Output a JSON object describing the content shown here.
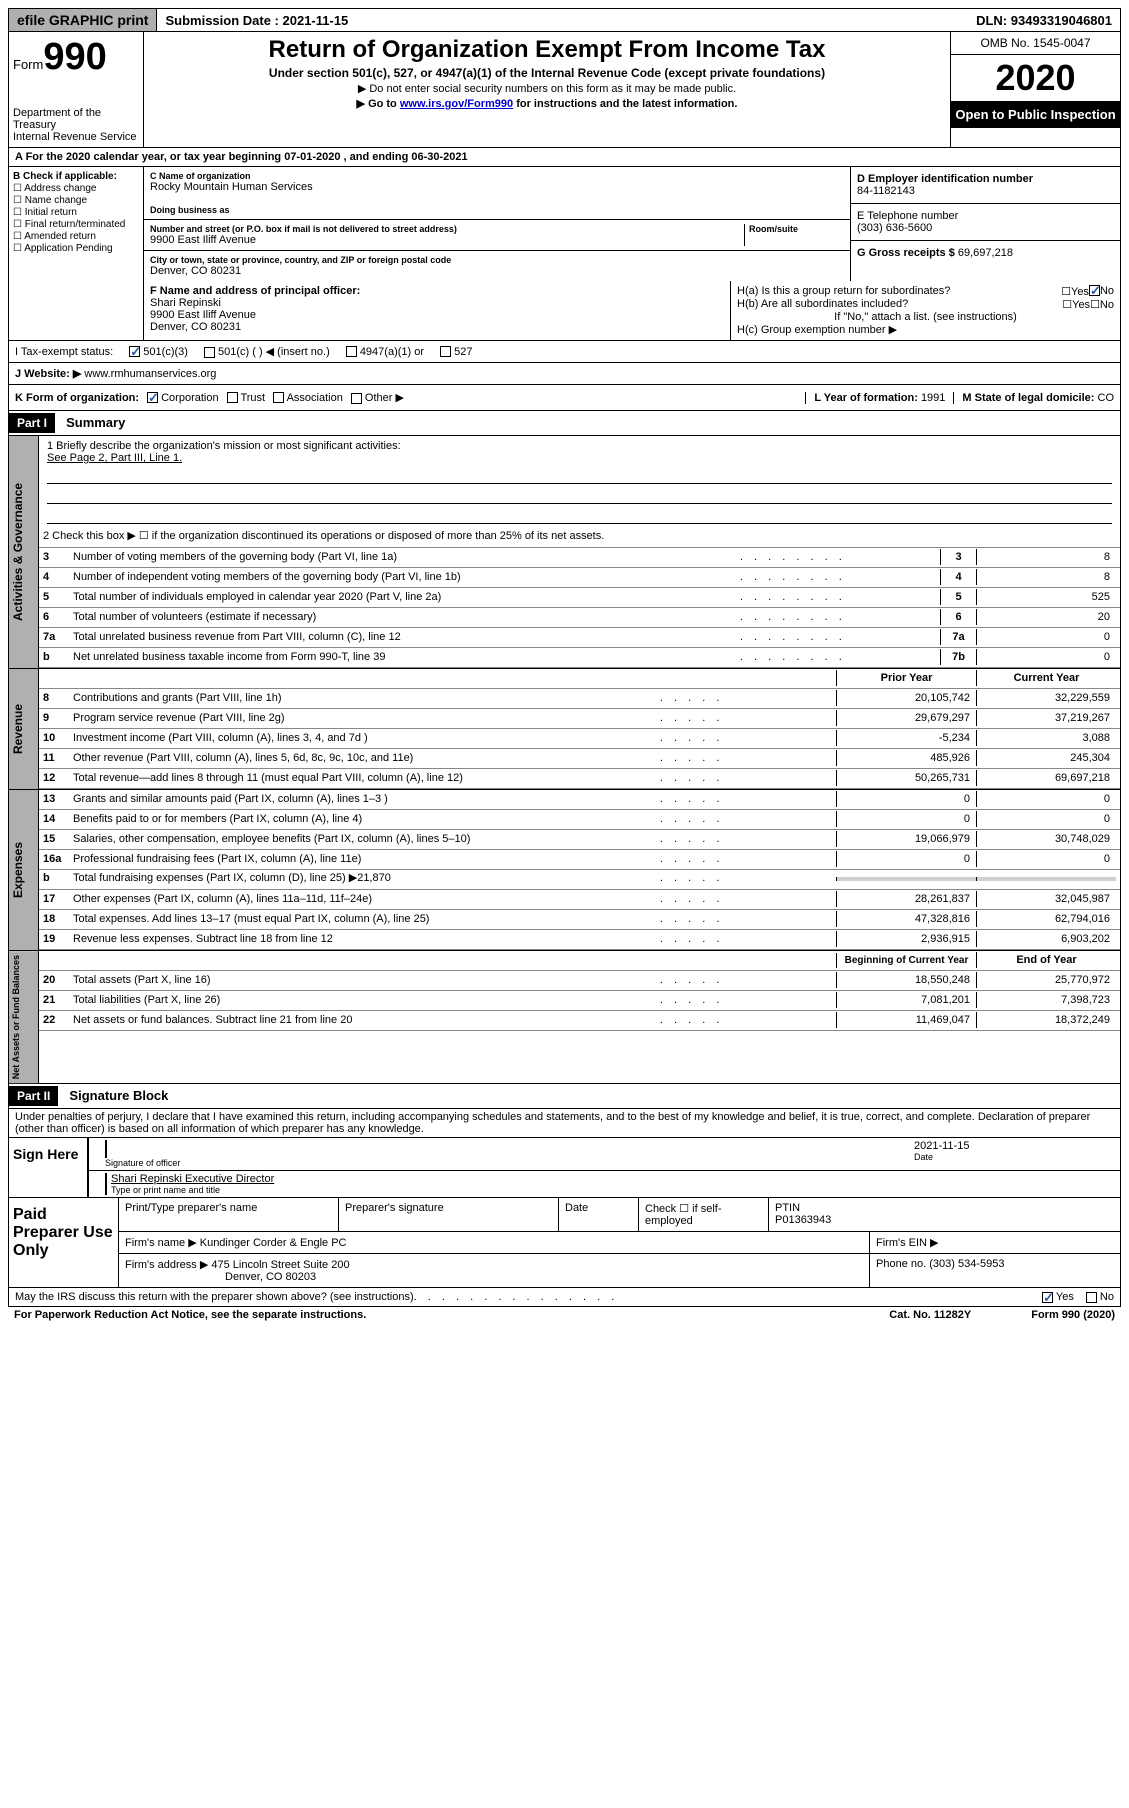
{
  "topbar": {
    "efile": "efile GRAPHIC print",
    "submission_label": "Submission Date : ",
    "submission_date": "2021-11-15",
    "dln_label": "DLN: ",
    "dln": "93493319046801"
  },
  "header": {
    "form_word": "Form",
    "form_num": "990",
    "dept": "Department of the Treasury\nInternal Revenue Service",
    "title": "Return of Organization Exempt From Income Tax",
    "subtitle": "Under section 501(c), 527, or 4947(a)(1) of the Internal Revenue Code (except private foundations)",
    "note1": "▶ Do not enter social security numbers on this form as it may be made public.",
    "note2_pre": "▶ Go to ",
    "note2_link": "www.irs.gov/Form990",
    "note2_post": " for instructions and the latest information.",
    "omb": "OMB No. 1545-0047",
    "year": "2020",
    "inspection": "Open to Public Inspection"
  },
  "periodA": "A For the 2020 calendar year, or tax year beginning 07-01-2020    , and ending 06-30-2021",
  "colB": {
    "label": "B Check if applicable:",
    "items": [
      "Address change",
      "Name change",
      "Initial return",
      "Final return/terminated",
      "Amended return",
      "Application Pending"
    ]
  },
  "colC": {
    "name_lbl": "C Name of organization",
    "name": "Rocky Mountain Human Services",
    "dba_lbl": "Doing business as",
    "dba": "",
    "street_lbl": "Number and street (or P.O. box if mail is not delivered to street address)",
    "room_lbl": "Room/suite",
    "street": "9900 East Iliff Avenue",
    "city_lbl": "City or town, state or province, country, and ZIP or foreign postal code",
    "city": "Denver, CO  80231"
  },
  "colD": {
    "ein_lbl": "D Employer identification number",
    "ein": "84-1182143",
    "phone_lbl": "E Telephone number",
    "phone": "(303) 636-5600",
    "gross_lbl": "G Gross receipts $ ",
    "gross": "69,697,218"
  },
  "rowF": {
    "lbl": "F  Name and address of principal officer:",
    "name": "Shari Repinski",
    "street": "9900 East Iliff Avenue",
    "city": "Denver, CO  80231"
  },
  "rowH": {
    "ha": "H(a)  Is this a group return for subordinates?",
    "hb": "H(b)  Are all subordinates included?",
    "hb_note": "If \"No,\" attach a list. (see instructions)",
    "hc": "H(c)  Group exemption number ▶"
  },
  "rowI": {
    "lbl": "I  Tax-exempt status:",
    "opts": [
      "501(c)(3)",
      "501(c) (  ) ◀ (insert no.)",
      "4947(a)(1) or",
      "527"
    ]
  },
  "rowJ": {
    "lbl": "J  Website: ▶",
    "val": " www.rmhumanservices.org"
  },
  "rowK": {
    "lbl": "K Form of organization:",
    "opts": [
      "Corporation",
      "Trust",
      "Association",
      "Other ▶"
    ],
    "year_lbl": "L Year of formation: ",
    "year": "1991",
    "state_lbl": "M State of legal domicile: ",
    "state": "CO"
  },
  "part1": {
    "hdr": "Part I",
    "title": "Summary"
  },
  "summary": {
    "line1_lbl": "1  Briefly describe the organization's mission or most significant activities:",
    "line1_val": "See Page 2, Part III, Line 1.",
    "line2": "2     Check this box ▶ ☐  if the organization discontinued its operations or disposed of more than 25% of its net assets.",
    "rows_ag": [
      {
        "n": "3",
        "t": "Number of voting members of the governing body (Part VI, line 1a)",
        "c": "3",
        "v": "8"
      },
      {
        "n": "4",
        "t": "Number of independent voting members of the governing body (Part VI, line 1b)",
        "c": "4",
        "v": "8"
      },
      {
        "n": "5",
        "t": "Total number of individuals employed in calendar year 2020 (Part V, line 2a)",
        "c": "5",
        "v": "525"
      },
      {
        "n": "6",
        "t": "Total number of volunteers (estimate if necessary)",
        "c": "6",
        "v": "20"
      },
      {
        "n": "7a",
        "t": "Total unrelated business revenue from Part VIII, column (C), line 12",
        "c": "7a",
        "v": "0"
      },
      {
        "n": "b",
        "t": "Net unrelated business taxable income from Form 990-T, line 39",
        "c": "7b",
        "v": "0"
      }
    ],
    "col_hdrs": {
      "prior": "Prior Year",
      "current": "Current Year",
      "boy": "Beginning of Current Year",
      "eoy": "End of Year"
    },
    "rows_rev": [
      {
        "n": "8",
        "t": "Contributions and grants (Part VIII, line 1h)",
        "p": "20,105,742",
        "c": "32,229,559"
      },
      {
        "n": "9",
        "t": "Program service revenue (Part VIII, line 2g)",
        "p": "29,679,297",
        "c": "37,219,267"
      },
      {
        "n": "10",
        "t": "Investment income (Part VIII, column (A), lines 3, 4, and 7d )",
        "p": "-5,234",
        "c": "3,088"
      },
      {
        "n": "11",
        "t": "Other revenue (Part VIII, column (A), lines 5, 6d, 8c, 9c, 10c, and 11e)",
        "p": "485,926",
        "c": "245,304"
      },
      {
        "n": "12",
        "t": "Total revenue—add lines 8 through 11 (must equal Part VIII, column (A), line 12)",
        "p": "50,265,731",
        "c": "69,697,218"
      }
    ],
    "rows_exp": [
      {
        "n": "13",
        "t": "Grants and similar amounts paid (Part IX, column (A), lines 1–3 )",
        "p": "0",
        "c": "0"
      },
      {
        "n": "14",
        "t": "Benefits paid to or for members (Part IX, column (A), line 4)",
        "p": "0",
        "c": "0"
      },
      {
        "n": "15",
        "t": "Salaries, other compensation, employee benefits (Part IX, column (A), lines 5–10)",
        "p": "19,066,979",
        "c": "30,748,029"
      },
      {
        "n": "16a",
        "t": "Professional fundraising fees (Part IX, column (A), line 11e)",
        "p": "0",
        "c": "0"
      },
      {
        "n": "b",
        "t": "Total fundraising expenses (Part IX, column (D), line 25) ▶21,870",
        "p": "",
        "c": "",
        "shade": true
      },
      {
        "n": "17",
        "t": "Other expenses (Part IX, column (A), lines 11a–11d, 11f–24e)",
        "p": "28,261,837",
        "c": "32,045,987"
      },
      {
        "n": "18",
        "t": "Total expenses. Add lines 13–17 (must equal Part IX, column (A), line 25)",
        "p": "47,328,816",
        "c": "62,794,016"
      },
      {
        "n": "19",
        "t": "Revenue less expenses. Subtract line 18 from line 12",
        "p": "2,936,915",
        "c": "6,903,202"
      }
    ],
    "rows_na": [
      {
        "n": "20",
        "t": "Total assets (Part X, line 16)",
        "p": "18,550,248",
        "c": "25,770,972"
      },
      {
        "n": "21",
        "t": "Total liabilities (Part X, line 26)",
        "p": "7,081,201",
        "c": "7,398,723"
      },
      {
        "n": "22",
        "t": "Net assets or fund balances. Subtract line 21 from line 20",
        "p": "11,469,047",
        "c": "18,372,249"
      }
    ]
  },
  "vtabs": {
    "ag": "Activities & Governance",
    "rev": "Revenue",
    "exp": "Expenses",
    "na": "Net Assets or Fund Balances"
  },
  "part2": {
    "hdr": "Part II",
    "title": "Signature Block",
    "perjury": "Under penalties of perjury, I declare that I have examined this return, including accompanying schedules and statements, and to the best of my knowledge and belief, it is true, correct, and complete. Declaration of preparer (other than officer) is based on all information of which preparer has any knowledge."
  },
  "sign": {
    "here": "Sign Here",
    "sig_lbl": "Signature of officer",
    "date_lbl": "Date",
    "date": "2021-11-15",
    "name": "Shari Repinski  Executive Director",
    "type_lbl": "Type or print name and title"
  },
  "prep": {
    "title": "Paid Preparer Use Only",
    "print_lbl": "Print/Type preparer's name",
    "sig_lbl": "Preparer's signature",
    "date_lbl": "Date",
    "check_lbl": "Check ☐ if self-employed",
    "ptin_lbl": "PTIN",
    "ptin": "P01363943",
    "firm_lbl": "Firm's name    ▶ ",
    "firm": "Kundinger Corder & Engle PC",
    "ein_lbl": "Firm's EIN ▶",
    "addr_lbl": "Firm's address ▶ ",
    "addr1": "475 Lincoln Street Suite 200",
    "addr2": "Denver, CO  80203",
    "phone_lbl": "Phone no. ",
    "phone": "(303) 534-5953"
  },
  "discuss": "May the IRS discuss this return with the preparer shown above? (see instructions)",
  "footer": {
    "pra": "For Paperwork Reduction Act Notice, see the separate instructions.",
    "cat": "Cat. No. 11282Y",
    "form": "Form 990 (2020)"
  }
}
